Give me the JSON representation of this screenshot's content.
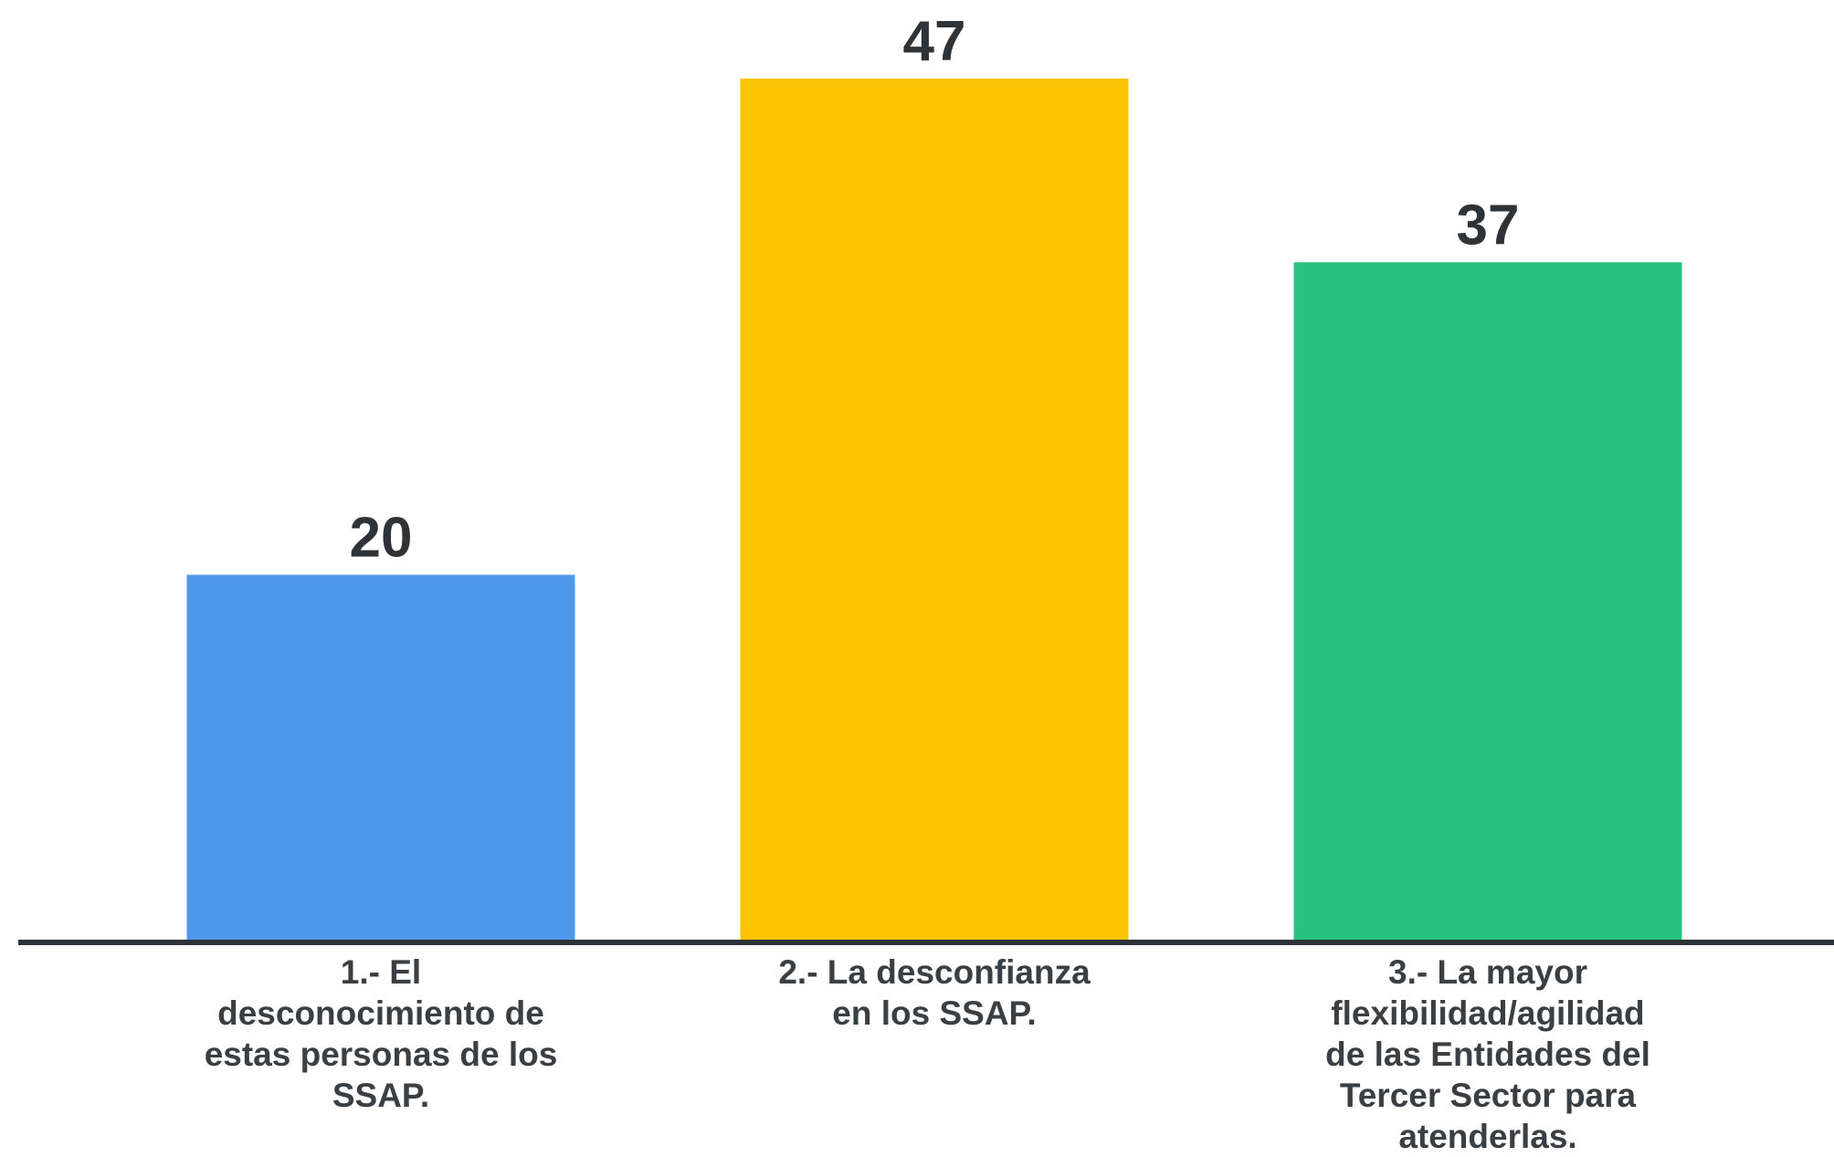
{
  "chart_data": {
    "type": "bar",
    "categories": [
      "1.- El desconocimiento de estas personas de los SSAP.",
      "2.- La desconfianza en los SSAP.",
      "3.- La mayor flexibilidad/agilidad de las Entidades del Tercer Sector para atenderlas."
    ],
    "category_lines": [
      [
        "1.- El",
        "desconocimiento de",
        "estas personas de los",
        "SSAP."
      ],
      [
        "2.- La desconfianza",
        "en los SSAP."
      ],
      [
        "3.- La mayor",
        "flexibilidad/agilidad",
        "de las Entidades del",
        "Tercer Sector para",
        "atenderlas."
      ]
    ],
    "values": [
      20,
      47,
      37
    ],
    "value_labels": [
      "20",
      "47",
      "37"
    ],
    "colors": [
      "#4f98ee",
      "#fbc402",
      "#29c17f"
    ],
    "axis_color": "#2e3338",
    "label_color": "#2e3338",
    "ylim": [
      0,
      47
    ],
    "grid": false,
    "legend": "none",
    "title": "",
    "xlabel": "",
    "ylabel": ""
  }
}
